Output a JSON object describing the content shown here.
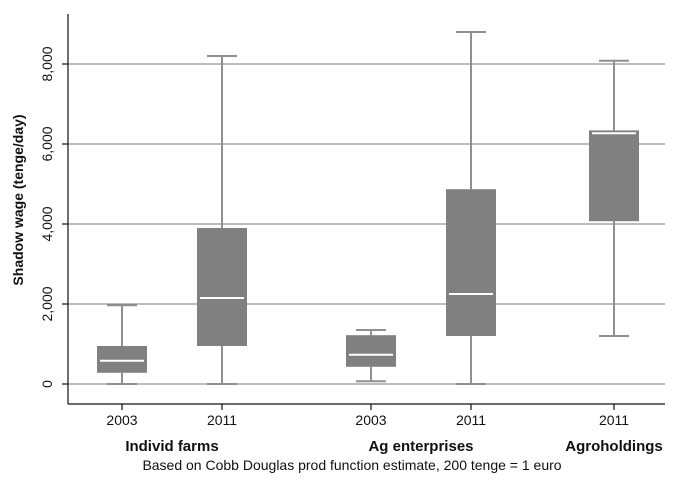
{
  "chart_data": {
    "type": "box",
    "ylabel": "Shadow wage (tenge/day)",
    "ylim": [
      -500,
      9300
    ],
    "yticks": [
      0,
      2000,
      4000,
      6000,
      8000
    ],
    "ytick_labels": [
      "0",
      "2,000",
      "4,000",
      "6,000",
      "8,000"
    ],
    "grid": true,
    "colors": {
      "box": "#808080",
      "median": "#ffffff",
      "whisker": "#909090",
      "grid": "#7a7a7a"
    },
    "groups": [
      {
        "label": "Individ farms",
        "boxes": [
          0,
          1
        ]
      },
      {
        "label": "Ag enterprises",
        "boxes": [
          2,
          3
        ]
      },
      {
        "label": "Agroholdings",
        "boxes": [
          4
        ]
      }
    ],
    "boxes": [
      {
        "year": "2003",
        "min": 0,
        "q1": 280,
        "median": 580,
        "q3": 950,
        "max": 1970
      },
      {
        "year": "2011",
        "min": 0,
        "q1": 950,
        "median": 2150,
        "q3": 3900,
        "max": 8200
      },
      {
        "year": "2003",
        "min": 70,
        "q1": 430,
        "median": 730,
        "q3": 1220,
        "max": 1350
      },
      {
        "year": "2011",
        "min": 0,
        "q1": 1200,
        "median": 2250,
        "q3": 4870,
        "max": 8800
      },
      {
        "year": "2011",
        "min": 1200,
        "q1": 4070,
        "median": 6270,
        "q3": 6340,
        "max": 8080
      }
    ],
    "note": "Based on Cobb Douglas prod function estimate, 200 tenge = 1 euro"
  }
}
